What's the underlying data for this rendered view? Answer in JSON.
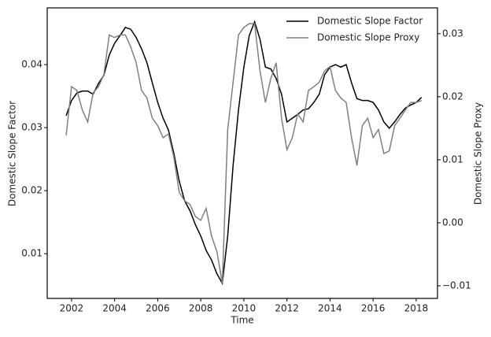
{
  "chart_data": {
    "type": "line",
    "xlabel": "Time",
    "ylabel": "Domestic Slope Factor",
    "y2label": "Domestic Slope Proxy",
    "x": [
      2001.75,
      2002,
      2002.25,
      2002.5,
      2002.75,
      2003,
      2003.25,
      2003.5,
      2003.75,
      2004,
      2004.25,
      2004.5,
      2004.75,
      2005,
      2005.25,
      2005.5,
      2005.75,
      2006,
      2006.25,
      2006.5,
      2006.75,
      2007,
      2007.25,
      2007.5,
      2007.75,
      2008,
      2008.25,
      2008.5,
      2008.75,
      2009,
      2009.25,
      2009.5,
      2009.75,
      2010,
      2010.25,
      2010.5,
      2010.75,
      2011,
      2011.25,
      2011.5,
      2011.75,
      2012,
      2012.25,
      2012.5,
      2012.75,
      2013,
      2013.25,
      2013.5,
      2013.75,
      2014,
      2014.25,
      2014.5,
      2014.75,
      2015,
      2015.25,
      2015.5,
      2015.75,
      2016,
      2016.25,
      2016.5,
      2016.75,
      2017,
      2017.25,
      2017.5,
      2017.75,
      2018,
      2018.25
    ],
    "series": [
      {
        "name": "Domestic Slope Factor",
        "color": "#000000",
        "axis": "y",
        "values": [
          0.0319,
          0.0343,
          0.0355,
          0.0358,
          0.0358,
          0.0353,
          0.037,
          0.0383,
          0.0415,
          0.0434,
          0.0446,
          0.0459,
          0.0456,
          0.0443,
          0.0425,
          0.0403,
          0.0371,
          0.034,
          0.0315,
          0.0296,
          0.0259,
          0.0215,
          0.0184,
          0.0168,
          0.0146,
          0.0128,
          0.0105,
          0.009,
          0.0068,
          0.0053,
          0.0128,
          0.024,
          0.0328,
          0.0396,
          0.0446,
          0.0468,
          0.044,
          0.0396,
          0.0393,
          0.0378,
          0.0353,
          0.0309,
          0.0315,
          0.0321,
          0.0328,
          0.033,
          0.034,
          0.0353,
          0.0384,
          0.0396,
          0.04,
          0.0396,
          0.04,
          0.0371,
          0.0346,
          0.0343,
          0.0343,
          0.034,
          0.0328,
          0.0309,
          0.0299,
          0.0309,
          0.0321,
          0.0331,
          0.0336,
          0.034,
          0.0348
        ]
      },
      {
        "name": "Domestic Slope Proxy",
        "color": "#7f7f7f",
        "axis": "y2",
        "values": [
          0.0139,
          0.0216,
          0.021,
          0.0179,
          0.016,
          0.0206,
          0.0216,
          0.0235,
          0.0298,
          0.0294,
          0.0298,
          0.0298,
          0.0279,
          0.0254,
          0.021,
          0.0198,
          0.0166,
          0.0154,
          0.0135,
          0.0141,
          0.0104,
          0.0048,
          0.0035,
          0.0029,
          0.001,
          0.0004,
          0.0023,
          -0.0021,
          -0.0046,
          -0.0096,
          0.0148,
          0.0223,
          0.0298,
          0.031,
          0.0316,
          0.0316,
          0.0241,
          0.0191,
          0.0229,
          0.0254,
          0.0166,
          0.0116,
          0.0135,
          0.0173,
          0.016,
          0.021,
          0.0216,
          0.0223,
          0.0241,
          0.0248,
          0.021,
          0.0198,
          0.0191,
          0.0135,
          0.0091,
          0.0154,
          0.0166,
          0.0135,
          0.0148,
          0.011,
          0.0114,
          0.0154,
          0.0166,
          0.0179,
          0.0191,
          0.0191,
          0.0194
        ]
      }
    ],
    "xlim": [
      2000.87,
      2018.99
    ],
    "xticks": [
      2002,
      2004,
      2006,
      2008,
      2010,
      2012,
      2014,
      2016,
      2018
    ],
    "ylim": [
      0.0029,
      0.049
    ],
    "yticks": [
      0.01,
      0.02,
      0.03,
      0.04
    ],
    "y2lim": [
      -0.012,
      0.0341
    ],
    "y2ticks": [
      {
        "value": -0.01,
        "label": "−0.01"
      },
      {
        "value": 0,
        "label": "0.00"
      },
      0.01,
      0.02,
      0.03
    ],
    "legend": "upper right",
    "y2color": "#7f7f7f"
  }
}
